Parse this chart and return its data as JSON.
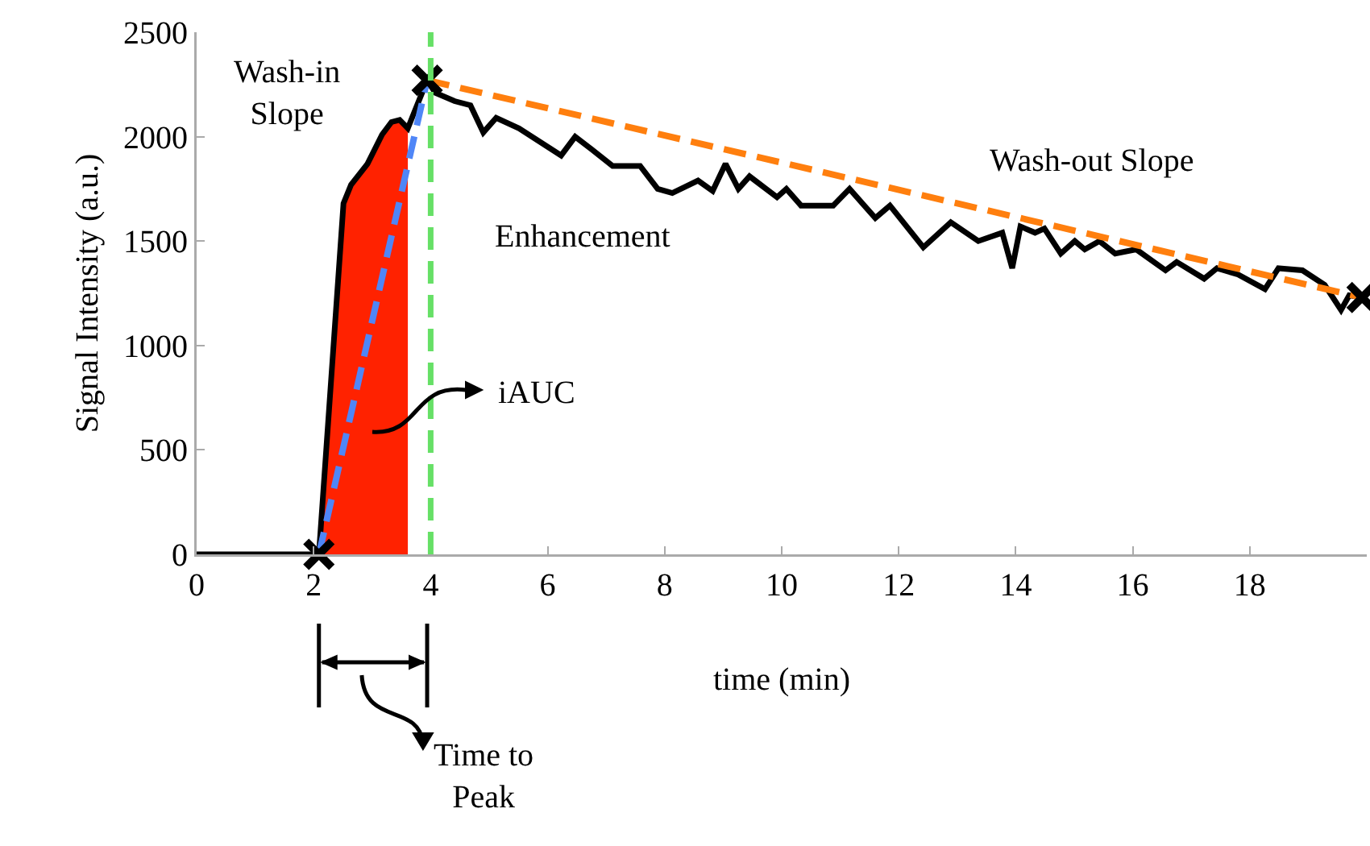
{
  "chart_data": {
    "type": "line",
    "xlabel": "time (min)",
    "ylabel": "Signal Intensity (a.u.)",
    "xlim": [
      0,
      20
    ],
    "xticks": [
      0,
      2,
      4,
      6,
      8,
      10,
      12,
      14,
      16,
      18
    ],
    "ylim": [
      0,
      2500
    ],
    "yticks": [
      0,
      500,
      1000,
      1500,
      2000,
      2500
    ],
    "grid": false,
    "annotations": [
      "Wash-in Slope",
      "Enhancement",
      "iAUC",
      "Wash-out Slope",
      "Time to Peak"
    ],
    "ref_lines": [
      {
        "axis": "x",
        "value": 4.0,
        "color": "#66e066",
        "line_style": "dashed"
      }
    ],
    "series": [
      {
        "type": "area",
        "color": "#ff2200",
        "x": [
          2.09,
          2.51,
          2.64,
          2.92,
          3.17,
          3.33,
          3.47,
          3.61
        ],
        "values": [
          0,
          1680,
          1770,
          1870,
          2010,
          2070,
          2080,
          2040
        ]
      },
      {
        "color": "#000000",
        "x": [
          0,
          2.09,
          2.51,
          2.64,
          2.92,
          3.17,
          3.33,
          3.47,
          3.61,
          3.94,
          4.08,
          4.41,
          4.68,
          4.9,
          5.12,
          5.51,
          6.23,
          6.47,
          6.75,
          7.11,
          7.58,
          7.88,
          8.13,
          8.57,
          8.82,
          9.04,
          9.26,
          9.45,
          9.92,
          10.08,
          10.33,
          10.88,
          11.16,
          11.6,
          11.85,
          12.42,
          12.89,
          13.36,
          13.77,
          13.94,
          14.08,
          14.33,
          14.49,
          14.77,
          15.01,
          15.18,
          15.43,
          15.7,
          16.06,
          16.56,
          16.75,
          17.22,
          17.44,
          17.8,
          18.26,
          18.49,
          18.9,
          19.28,
          19.56,
          19.7,
          19.92
        ],
        "values": [
          0,
          0,
          1680,
          1770,
          1870,
          2010,
          2070,
          2080,
          2040,
          2270,
          2210,
          2170,
          2150,
          2020,
          2090,
          2040,
          1910,
          2000,
          1940,
          1860,
          1860,
          1750,
          1730,
          1790,
          1740,
          1870,
          1750,
          1810,
          1710,
          1750,
          1670,
          1670,
          1750,
          1610,
          1670,
          1470,
          1590,
          1500,
          1540,
          1370,
          1570,
          1540,
          1560,
          1440,
          1500,
          1460,
          1500,
          1440,
          1460,
          1360,
          1400,
          1320,
          1370,
          1340,
          1270,
          1370,
          1360,
          1290,
          1170,
          1240,
          1230
        ]
      },
      {
        "color": "#4f86f7",
        "line_style": "dashed",
        "x": [
          2.09,
          3.94
        ],
        "values": [
          0,
          2270
        ]
      },
      {
        "color": "#ff7f0e",
        "line_style": "dashed",
        "x": [
          3.94,
          19.92
        ],
        "values": [
          2270,
          1230
        ]
      },
      {
        "type": "scatter",
        "color": "#000000",
        "marker": "cross",
        "x": [
          2.09,
          3.94,
          19.92
        ],
        "values": [
          0,
          2270,
          1230
        ]
      }
    ]
  }
}
